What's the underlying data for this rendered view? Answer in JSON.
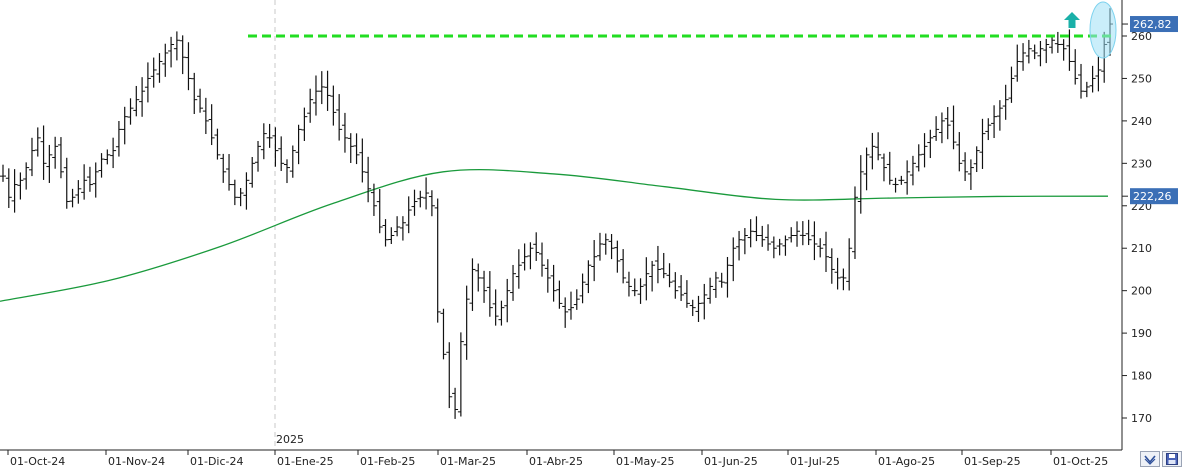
{
  "chart_data": {
    "type": "ohlc",
    "y_axis": {
      "position": "right",
      "ylim": [
        165,
        265
      ],
      "ticks": [
        170,
        180,
        190,
        200,
        210,
        220,
        230,
        240,
        250,
        260
      ]
    },
    "x_axis": {
      "ticks": [
        "01-Oct-24",
        "01-Nov-24",
        "01-Dic-24",
        "01-Ene-25",
        "01-Feb-25",
        "01-Mar-25",
        "01-Abr-25",
        "01-May-25",
        "01-Jun-25",
        "01-Jul-25",
        "01-Ago-25",
        "01-Sep-25",
        "01-Oct-25"
      ],
      "year_marker": "2025"
    },
    "series": [
      {
        "kind": "price_bars",
        "color": "#111111",
        "closes": [
          227,
          222,
          225,
          226,
          229,
          233,
          236,
          230,
          232,
          234,
          228,
          221,
          222,
          224,
          226,
          225,
          228,
          231,
          232,
          233,
          238,
          241,
          243,
          245,
          247,
          250,
          252,
          254,
          256,
          258,
          259,
          255,
          250,
          245,
          243,
          240,
          236,
          232,
          228,
          225,
          222,
          223,
          226,
          230,
          234,
          237,
          236,
          233,
          230,
          229,
          233,
          238,
          241,
          245,
          247,
          248,
          246,
          242,
          238,
          236,
          234,
          232,
          228,
          224,
          220,
          215,
          212,
          213,
          215,
          216,
          219,
          221,
          222,
          223,
          220,
          195,
          185,
          175,
          172,
          188,
          198,
          205,
          203,
          200,
          196,
          194,
          196,
          200,
          204,
          206,
          208,
          210,
          209,
          206,
          203,
          200,
          197,
          195,
          196,
          198,
          202,
          206,
          208,
          211,
          212,
          210,
          207,
          203,
          201,
          200,
          201,
          204,
          206,
          205,
          204,
          202,
          200,
          199,
          197,
          196,
          197,
          199,
          201,
          203,
          202,
          206,
          210,
          212,
          213,
          214,
          213,
          212,
          211,
          210,
          211,
          212,
          213,
          214,
          213,
          212,
          211,
          210,
          208,
          205,
          203,
          203,
          210,
          222,
          228,
          232,
          234,
          232,
          229,
          226,
          225,
          226,
          228,
          230,
          232,
          234,
          236,
          238,
          240,
          239,
          235,
          230,
          228,
          229,
          233,
          237,
          239,
          241,
          243,
          245,
          250,
          254,
          256,
          257,
          256,
          257,
          258,
          259,
          258,
          257,
          254,
          250,
          247,
          248,
          250,
          252,
          258,
          262.82
        ],
        "last_value": "262,82"
      },
      {
        "kind": "moving_average",
        "color": "#1a9a3c",
        "x_fraction": [
          0.0,
          0.1,
          0.2,
          0.3,
          0.4,
          0.5,
          0.6,
          0.7,
          0.8,
          0.9,
          1.0
        ],
        "values": [
          197.5,
          202.5,
          210.5,
          220.5,
          228.0,
          227.5,
          224.5,
          221.5,
          221.8,
          222.2,
          222.26
        ],
        "last_value": "222,26"
      }
    ],
    "annotations": [
      {
        "kind": "horizontal_dashed_line",
        "value": 260,
        "color": "#22dd22"
      },
      {
        "kind": "up_arrow",
        "color": "#1ab0a8"
      },
      {
        "kind": "highlight_ellipse",
        "color": "#9ee0f5"
      }
    ]
  },
  "colors": {
    "price_box": "#3b6fb6",
    "grid_dash": "#c9c9c9",
    "axis": "#222222"
  },
  "controls": {
    "zoom_icon": "zoom-icon",
    "save_icon": "save-icon"
  }
}
